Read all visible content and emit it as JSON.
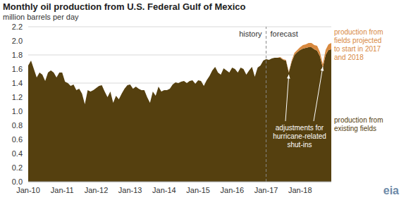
{
  "chart_data": {
    "type": "area",
    "stacked": true,
    "grid": true,
    "title": "Monthly oil production from U.S. Federal Gulf of Mexico",
    "subtitle": "million barrels per day",
    "categories": [
      "Jan-10",
      null,
      null,
      null,
      null,
      null,
      null,
      null,
      null,
      null,
      null,
      null,
      "Jan-11",
      null,
      null,
      null,
      null,
      null,
      null,
      null,
      null,
      null,
      null,
      null,
      "Jan-12",
      null,
      null,
      null,
      null,
      null,
      null,
      null,
      null,
      null,
      null,
      null,
      "Jan-13",
      null,
      null,
      null,
      null,
      null,
      null,
      null,
      null,
      null,
      null,
      null,
      "Jan-14",
      null,
      null,
      null,
      null,
      null,
      null,
      null,
      null,
      null,
      null,
      null,
      "Jan-15",
      null,
      null,
      null,
      null,
      null,
      null,
      null,
      null,
      null,
      null,
      null,
      "Jan-16",
      null,
      null,
      null,
      null,
      null,
      null,
      null,
      null,
      null,
      null,
      null,
      "Jan-17",
      null,
      null,
      null,
      null,
      null,
      null,
      null,
      null,
      null,
      null,
      null,
      "Jan-18",
      null,
      null,
      null,
      null,
      null,
      null,
      null,
      null,
      null,
      null,
      null
    ],
    "series": [
      {
        "name": "production from existing fields",
        "color": "#55400f",
        "values": [
          1.65,
          1.72,
          1.6,
          1.48,
          1.55,
          1.52,
          1.43,
          1.55,
          1.58,
          1.55,
          1.48,
          1.55,
          1.55,
          1.42,
          1.4,
          1.36,
          1.38,
          1.3,
          1.32,
          1.25,
          1.1,
          1.3,
          1.28,
          1.3,
          1.33,
          1.36,
          1.37,
          1.28,
          1.2,
          1.28,
          1.12,
          1.22,
          1.17,
          1.25,
          1.32,
          1.37,
          1.38,
          1.32,
          1.35,
          1.32,
          1.3,
          1.3,
          1.2,
          1.12,
          1.28,
          1.22,
          1.35,
          1.28,
          1.3,
          1.3,
          1.32,
          1.38,
          1.41,
          1.4,
          1.42,
          1.43,
          1.4,
          1.43,
          1.44,
          1.39,
          1.44,
          1.43,
          1.36,
          1.44,
          1.5,
          1.58,
          1.63,
          1.55,
          1.52,
          1.61,
          1.58,
          1.55,
          1.62,
          1.6,
          1.55,
          1.62,
          1.6,
          1.52,
          1.58,
          1.63,
          1.49,
          1.62,
          1.65,
          1.72,
          1.74,
          1.73,
          1.75,
          1.76,
          1.76,
          1.76,
          1.73,
          1.72,
          1.55,
          1.7,
          1.8,
          1.84,
          1.87,
          1.89,
          1.9,
          1.91,
          1.91,
          1.88,
          1.86,
          1.78,
          1.62,
          1.8,
          1.87,
          1.88
        ]
      },
      {
        "name": "production from fields projected to start in 2017 and 2018",
        "color": "#d8893f",
        "values": [
          0,
          0,
          0,
          0,
          0,
          0,
          0,
          0,
          0,
          0,
          0,
          0,
          0,
          0,
          0,
          0,
          0,
          0,
          0,
          0,
          0,
          0,
          0,
          0,
          0,
          0,
          0,
          0,
          0,
          0,
          0,
          0,
          0,
          0,
          0,
          0,
          0,
          0,
          0,
          0,
          0,
          0,
          0,
          0,
          0,
          0,
          0,
          0,
          0,
          0,
          0,
          0,
          0,
          0,
          0,
          0,
          0,
          0,
          0,
          0,
          0,
          0,
          0,
          0,
          0,
          0,
          0,
          0,
          0,
          0,
          0,
          0,
          0,
          0,
          0,
          0,
          0,
          0,
          0,
          0,
          0,
          0,
          0,
          0,
          0,
          0,
          0,
          0,
          0,
          0.01,
          0.01,
          0.01,
          0.01,
          0.02,
          0.03,
          0.03,
          0.04,
          0.05,
          0.05,
          0.06,
          0.06,
          0.06,
          0.07,
          0.06,
          0.05,
          0.07,
          0.08,
          0.09
        ]
      }
    ],
    "ylim": [
      0,
      2.2
    ],
    "yticks": [
      {
        "value": 0,
        "label": "0.0"
      },
      0.2,
      0.4,
      0.6,
      0.8,
      {
        "value": 1,
        "label": "1.0"
      },
      1.2,
      1.4,
      1.6,
      1.8,
      {
        "value": 2,
        "label": "2.0"
      },
      2.2
    ],
    "annotations": [
      {
        "text": "history",
        "x": "Jan-17"
      },
      {
        "text": "forecast",
        "x": "Jan-17"
      },
      {
        "text": "adjustments for hurricane-related shut-ins"
      }
    ],
    "logo": "eia"
  }
}
